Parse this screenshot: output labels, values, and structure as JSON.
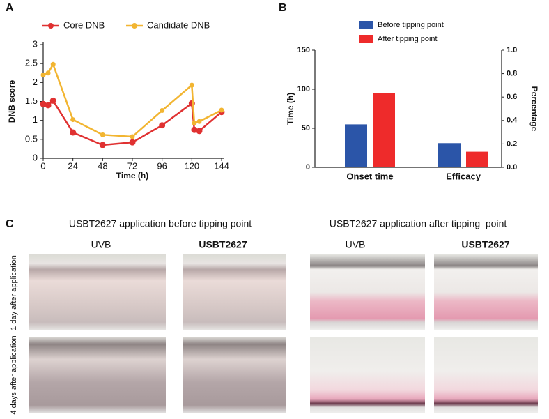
{
  "chart_data": [
    {
      "type": "line",
      "panel_label": "A",
      "x": [
        0,
        4,
        8,
        24,
        48,
        72,
        96,
        120,
        122,
        126,
        144
      ],
      "series": [
        {
          "name": "Core DNB",
          "color": "#e03131",
          "values": [
            1.43,
            1.4,
            1.52,
            0.68,
            0.35,
            0.42,
            0.87,
            1.45,
            0.75,
            0.72,
            1.22
          ]
        },
        {
          "name": "Candidate DNB",
          "color": "#f2b531",
          "values": [
            2.2,
            2.25,
            2.48,
            1.02,
            0.62,
            0.57,
            1.26,
            1.93,
            0.93,
            0.97,
            1.27
          ]
        }
      ],
      "xlabel": "Time (h)",
      "ylabel": "DNB score",
      "xlim": [
        0,
        144
      ],
      "xticks": [
        0,
        24,
        48,
        72,
        96,
        120,
        144
      ],
      "ylim": [
        0,
        3
      ],
      "yticks": [
        0,
        0.5,
        1,
        1.5,
        2,
        2.5,
        3
      ],
      "grid": false,
      "legend": "top"
    },
    {
      "type": "bar",
      "panel_label": "B",
      "categories": [
        "Onset time",
        "Efficacy"
      ],
      "series": [
        {
          "name": "Before tipping point",
          "color": "#2b55a8",
          "values": [
            55,
            31
          ]
        },
        {
          "name": "After tipping point",
          "color": "#ee2b2b",
          "values": [
            95,
            20
          ]
        }
      ],
      "ylabel": "Time (h)",
      "y2label": "Percentage",
      "ylim": [
        0,
        150
      ],
      "yticks": [
        0,
        50,
        100,
        150
      ],
      "y2lim": [
        0,
        1
      ],
      "y2ticks": [
        {
          "value": 0,
          "label": "0.0"
        },
        {
          "value": 0.2,
          "label": "0.2"
        },
        {
          "value": 0.4,
          "label": "0.4"
        },
        {
          "value": 0.6,
          "label": "0.6"
        },
        {
          "value": 0.8,
          "label": "0.8"
        },
        {
          "value": 1,
          "label": "1.0"
        }
      ],
      "grid": false,
      "legend": "top"
    }
  ],
  "panel_c": {
    "label": "C",
    "groups": [
      {
        "title": "USBT2627 application before tipping point",
        "columns": [
          "UVB",
          "USBT2627"
        ]
      },
      {
        "title": "USBT2627 application after tipping  point",
        "columns": [
          "UVB",
          "USBT2627"
        ]
      }
    ],
    "rows": [
      "1 day after application",
      "4 days after application"
    ]
  }
}
